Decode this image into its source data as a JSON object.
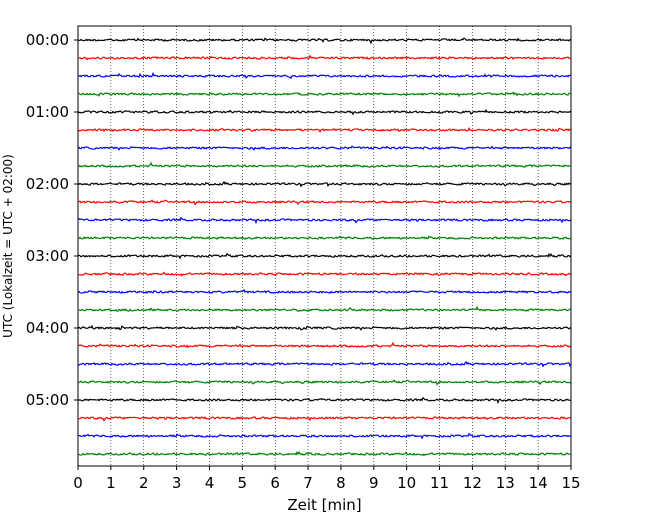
{
  "chart_data": {
    "type": "line",
    "title": "",
    "xlabel": "Zeit  [min]",
    "ylabel": "UTC (Lokalzeit = UTC + 02:00)",
    "xlim": [
      0,
      15
    ],
    "x_ticks": [
      "0",
      "1",
      "2",
      "3",
      "4",
      "5",
      "6",
      "7",
      "8",
      "9",
      "10",
      "11",
      "12",
      "13",
      "14",
      "15"
    ],
    "y_ticks": [
      "00:00",
      "01:00",
      "02:00",
      "03:00",
      "04:00",
      "05:00"
    ],
    "trace_interval_min": 15,
    "trace_count": 24,
    "trace_colors": [
      "#000000",
      "#ff0000",
      "#0000ff",
      "#008000"
    ],
    "grid": "vertical dotted"
  }
}
